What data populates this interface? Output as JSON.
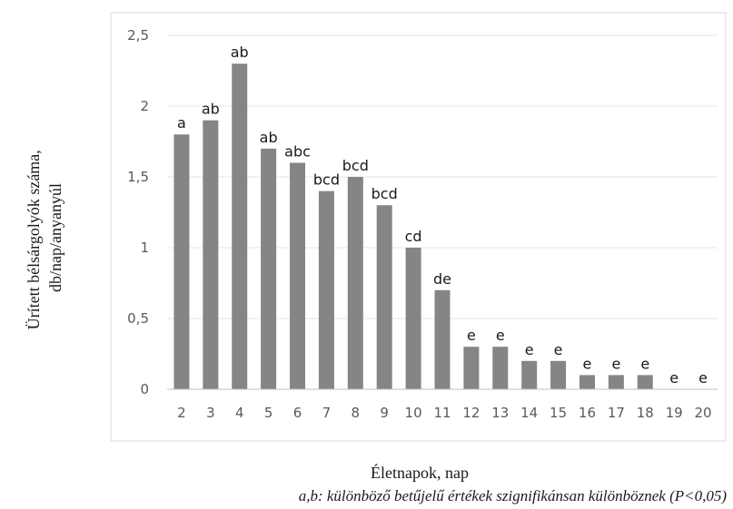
{
  "chart_data": {
    "type": "bar",
    "categories": [
      "2",
      "3",
      "4",
      "5",
      "6",
      "7",
      "8",
      "9",
      "10",
      "11",
      "12",
      "13",
      "14",
      "15",
      "16",
      "17",
      "18",
      "19",
      "20"
    ],
    "values": [
      1.8,
      1.9,
      2.3,
      1.7,
      1.6,
      1.4,
      1.5,
      1.3,
      1.0,
      0.7,
      0.3,
      0.3,
      0.2,
      0.2,
      0.1,
      0.1,
      0.1,
      0,
      0
    ],
    "data_labels": [
      "a",
      "ab",
      "ab",
      "ab",
      "abc",
      "bcd",
      "bcd",
      "bcd",
      "cd",
      "de",
      "e",
      "e",
      "e",
      "e",
      "e",
      "e",
      "e",
      "e",
      "e"
    ],
    "title": "",
    "xlabel": "Életnapok, nap",
    "ylabel_lines": [
      "Ürített bélsárgolyók száma,",
      "db/nap/anyanyúl"
    ],
    "ylim": [
      0,
      2.5
    ],
    "yticks": [
      "0",
      "0,5",
      "1",
      "1,5",
      "2",
      "2,5"
    ],
    "grid": true,
    "legend": "none",
    "footnote": "a,b: különböző betűjelű értékek szignifikánsan különböznek (P<0,05)",
    "colors": {
      "bar": "#858585",
      "grid": "#e6e6e6",
      "axis": "#bfbfbf",
      "frame": "#d9d9d9"
    }
  }
}
